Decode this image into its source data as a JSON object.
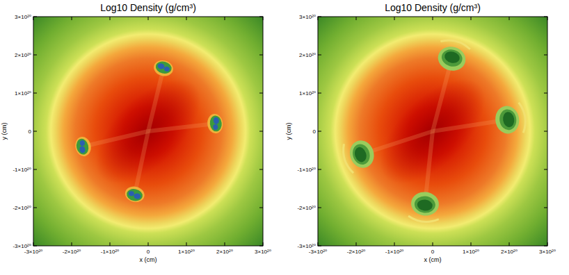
{
  "chart_data": [
    {
      "type": "heatmap",
      "title": "Log10 Density (g/cm³)",
      "x_label": "x (cm)",
      "y_label": "y (cm)",
      "xlim": [
        -3e+20,
        3e+20
      ],
      "ylim": [
        -3e+20,
        3e+20
      ],
      "xticks": [
        {
          "value": -3e+20,
          "label": "-3×10²⁰"
        },
        {
          "value": -2e+20,
          "label": "-2×10²⁰"
        },
        {
          "value": -1e+20,
          "label": "-1×10²⁰"
        },
        0,
        {
          "value": 1e+20,
          "label": "1×10²⁰"
        },
        {
          "value": 2e+20,
          "label": "2×10²⁰"
        },
        {
          "value": 3e+20,
          "label": "3×10²⁰"
        }
      ],
      "yticks": [
        {
          "value": -3e+20,
          "label": "-3×10²⁰"
        },
        {
          "value": -2e+20,
          "label": "-2×10²⁰"
        },
        {
          "value": -1e+20,
          "label": "-1×10²⁰"
        },
        0,
        {
          "value": 1e+20,
          "label": "1×10²⁰"
        },
        {
          "value": 2e+20,
          "label": "2×10²⁰"
        },
        {
          "value": 3e+20,
          "label": "3×10²⁰"
        }
      ],
      "color": "#2a5fb0",
      "clumps": {
        "x": [
          4e+19,
          1.75e+20,
          -1.7e+20,
          -3.5e+19
        ],
        "y": [
          1.65e+20,
          2e+19,
          -4e+19,
          -1.65e+20
        ]
      }
    },
    {
      "type": "heatmap",
      "title": "Log10 Density (g/cm³)",
      "x_label": "x (cm)",
      "y_label": "y (cm)",
      "xlim": [
        -3e+20,
        3e+20
      ],
      "ylim": [
        -3e+20,
        3e+20
      ],
      "xticks": [
        {
          "value": -3e+20,
          "label": "-3×10²⁰"
        },
        {
          "value": -2e+20,
          "label": "-2×10²⁰"
        },
        {
          "value": -1e+20,
          "label": "-1×10²⁰"
        },
        0,
        {
          "value": 1e+20,
          "label": "1×10²⁰"
        },
        {
          "value": 2e+20,
          "label": "2×10²⁰"
        },
        {
          "value": 3e+20,
          "label": "3×10²⁰"
        }
      ],
      "yticks": [
        {
          "value": -3e+20,
          "label": "-3×10²⁰"
        },
        {
          "value": -2e+20,
          "label": "-2×10²⁰"
        },
        {
          "value": -1e+20,
          "label": "-1×10²⁰"
        },
        0,
        {
          "value": 1e+20,
          "label": "1×10²⁰"
        },
        {
          "value": 2e+20,
          "label": "2×10²⁰"
        },
        {
          "value": 3e+20,
          "label": "3×10²⁰"
        }
      ],
      "color": "#1e6a22",
      "clumps": {
        "x": [
          5e+19,
          1.95e+20,
          -1.85e+20,
          -2e+19
        ],
        "y": [
          1.9e+20,
          3e+19,
          -6e+19,
          -1.9e+20
        ]
      }
    }
  ]
}
